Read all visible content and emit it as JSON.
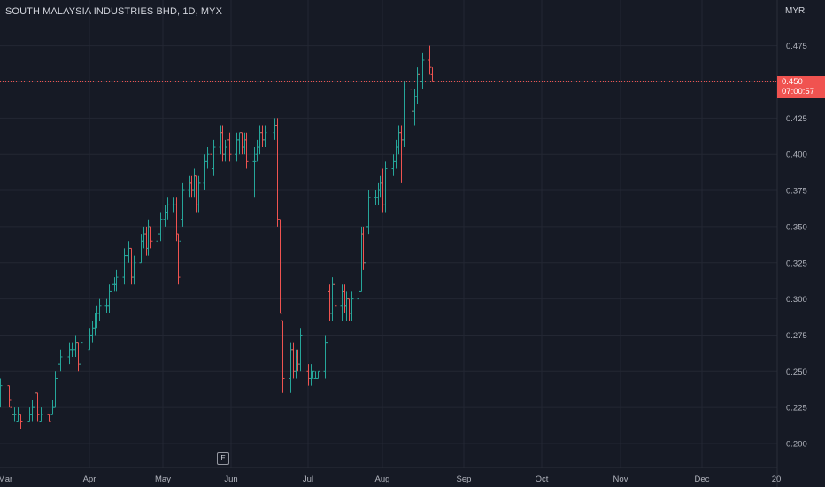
{
  "header": {
    "title": "SOUTH MALAYSIA INDUSTRIES BHD, 1D, MYX",
    "currency": "MYR"
  },
  "price_tag": {
    "price": "0.450",
    "countdown": "07:00:57"
  },
  "earnings_marker": "E",
  "colors": {
    "up": "#26a69a",
    "down": "#ef5350",
    "background": "#161a25",
    "grid": "#232733",
    "price_tag": "#f05350"
  },
  "chart_data": {
    "type": "ohlc",
    "title": "SOUTH MALAYSIA INDUSTRIES BHD, 1D, MYX",
    "ylabel": "MYR",
    "ylim": [
      0.1875,
      0.49
    ],
    "y_ticks": [
      "0.200",
      "0.225",
      "0.250",
      "0.275",
      "0.300",
      "0.325",
      "0.350",
      "0.375",
      "0.400",
      "0.425",
      "0.450",
      "0.475"
    ],
    "x_ticks": [
      "Mar",
      "Apr",
      "May",
      "Jun",
      "Jul",
      "Aug",
      "Sep",
      "Oct",
      "Nov",
      "Dec",
      "20"
    ],
    "last_price": 0.45,
    "grid": true,
    "bars": [
      {
        "date": "Mar 01",
        "o": 0.235,
        "h": 0.245,
        "l": 0.225,
        "c": 0.24
      },
      {
        "date": "Mar 04",
        "o": 0.24,
        "h": 0.24,
        "l": 0.225,
        "c": 0.23
      },
      {
        "date": "Mar 05",
        "o": 0.225,
        "h": 0.225,
        "l": 0.215,
        "c": 0.22
      },
      {
        "date": "Mar 06",
        "o": 0.22,
        "h": 0.225,
        "l": 0.215,
        "c": 0.22
      },
      {
        "date": "Mar 07",
        "o": 0.215,
        "h": 0.225,
        "l": 0.215,
        "c": 0.22
      },
      {
        "date": "Mar 08",
        "o": 0.22,
        "h": 0.22,
        "l": 0.21,
        "c": 0.215
      },
      {
        "date": "Mar 11",
        "o": 0.215,
        "h": 0.225,
        "l": 0.215,
        "c": 0.22
      },
      {
        "date": "Mar 12",
        "o": 0.22,
        "h": 0.23,
        "l": 0.215,
        "c": 0.225
      },
      {
        "date": "Mar 13",
        "o": 0.225,
        "h": 0.24,
        "l": 0.22,
        "c": 0.235
      },
      {
        "date": "Mar 14",
        "o": 0.235,
        "h": 0.235,
        "l": 0.215,
        "c": 0.22
      },
      {
        "date": "Mar 15",
        "o": 0.215,
        "h": 0.225,
        "l": 0.215,
        "c": 0.22
      },
      {
        "date": "Mar 18",
        "o": 0.22,
        "h": 0.22,
        "l": 0.215,
        "c": 0.215
      },
      {
        "date": "Mar 19",
        "o": 0.22,
        "h": 0.23,
        "l": 0.22,
        "c": 0.225
      },
      {
        "date": "Mar 20",
        "o": 0.225,
        "h": 0.25,
        "l": 0.225,
        "c": 0.245
      },
      {
        "date": "Mar 21",
        "o": 0.245,
        "h": 0.26,
        "l": 0.24,
        "c": 0.255
      },
      {
        "date": "Mar 22",
        "o": 0.255,
        "h": 0.265,
        "l": 0.25,
        "c": 0.26
      },
      {
        "date": "Mar 25",
        "o": 0.26,
        "h": 0.27,
        "l": 0.255,
        "c": 0.265
      },
      {
        "date": "Mar 26",
        "o": 0.265,
        "h": 0.27,
        "l": 0.26,
        "c": 0.265
      },
      {
        "date": "Mar 27",
        "o": 0.265,
        "h": 0.275,
        "l": 0.26,
        "c": 0.27
      },
      {
        "date": "Mar 28",
        "o": 0.27,
        "h": 0.27,
        "l": 0.25,
        "c": 0.255
      },
      {
        "date": "Mar 29",
        "o": 0.255,
        "h": 0.275,
        "l": 0.255,
        "c": 0.27
      },
      {
        "date": "Apr 01",
        "o": 0.265,
        "h": 0.28,
        "l": 0.265,
        "c": 0.275
      },
      {
        "date": "Apr 02",
        "o": 0.275,
        "h": 0.285,
        "l": 0.27,
        "c": 0.28
      },
      {
        "date": "Apr 03",
        "o": 0.28,
        "h": 0.29,
        "l": 0.275,
        "c": 0.285
      },
      {
        "date": "Apr 04",
        "o": 0.285,
        "h": 0.295,
        "l": 0.28,
        "c": 0.29
      },
      {
        "date": "Apr 05",
        "o": 0.29,
        "h": 0.3,
        "l": 0.285,
        "c": 0.295
      },
      {
        "date": "Apr 08",
        "o": 0.295,
        "h": 0.3,
        "l": 0.29,
        "c": 0.295
      },
      {
        "date": "Apr 09",
        "o": 0.295,
        "h": 0.31,
        "l": 0.29,
        "c": 0.305
      },
      {
        "date": "Apr 10",
        "o": 0.305,
        "h": 0.315,
        "l": 0.3,
        "c": 0.31
      },
      {
        "date": "Apr 11",
        "o": 0.31,
        "h": 0.315,
        "l": 0.305,
        "c": 0.31
      },
      {
        "date": "Apr 12",
        "o": 0.31,
        "h": 0.32,
        "l": 0.305,
        "c": 0.315
      },
      {
        "date": "Apr 15",
        "o": 0.315,
        "h": 0.335,
        "l": 0.31,
        "c": 0.33
      },
      {
        "date": "Apr 16",
        "o": 0.33,
        "h": 0.335,
        "l": 0.325,
        "c": 0.33
      },
      {
        "date": "Apr 17",
        "o": 0.33,
        "h": 0.34,
        "l": 0.325,
        "c": 0.335
      },
      {
        "date": "Apr 18",
        "o": 0.335,
        "h": 0.335,
        "l": 0.31,
        "c": 0.315
      },
      {
        "date": "Apr 19",
        "o": 0.315,
        "h": 0.33,
        "l": 0.31,
        "c": 0.325
      },
      {
        "date": "Apr 22",
        "o": 0.325,
        "h": 0.345,
        "l": 0.325,
        "c": 0.34
      },
      {
        "date": "Apr 23",
        "o": 0.34,
        "h": 0.35,
        "l": 0.335,
        "c": 0.345
      },
      {
        "date": "Apr 24",
        "o": 0.345,
        "h": 0.35,
        "l": 0.33,
        "c": 0.335
      },
      {
        "date": "Apr 25",
        "o": 0.335,
        "h": 0.355,
        "l": 0.33,
        "c": 0.35
      },
      {
        "date": "Apr 26",
        "o": 0.35,
        "h": 0.35,
        "l": 0.335,
        "c": 0.34
      },
      {
        "date": "Apr 29",
        "o": 0.34,
        "h": 0.35,
        "l": 0.34,
        "c": 0.345
      },
      {
        "date": "Apr 30",
        "o": 0.345,
        "h": 0.36,
        "l": 0.34,
        "c": 0.355
      },
      {
        "date": "May 02",
        "o": 0.355,
        "h": 0.365,
        "l": 0.35,
        "c": 0.36
      },
      {
        "date": "May 03",
        "o": 0.36,
        "h": 0.37,
        "l": 0.355,
        "c": 0.365
      },
      {
        "date": "May 06",
        "o": 0.365,
        "h": 0.37,
        "l": 0.36,
        "c": 0.365
      },
      {
        "date": "May 07",
        "o": 0.365,
        "h": 0.37,
        "l": 0.34,
        "c": 0.345
      },
      {
        "date": "May 08",
        "o": 0.345,
        "h": 0.345,
        "l": 0.31,
        "c": 0.315
      },
      {
        "date": "May 09",
        "o": 0.34,
        "h": 0.36,
        "l": 0.34,
        "c": 0.355
      },
      {
        "date": "May 10",
        "o": 0.355,
        "h": 0.38,
        "l": 0.35,
        "c": 0.375
      },
      {
        "date": "May 13",
        "o": 0.375,
        "h": 0.385,
        "l": 0.37,
        "c": 0.38
      },
      {
        "date": "May 14",
        "o": 0.38,
        "h": 0.385,
        "l": 0.37,
        "c": 0.375
      },
      {
        "date": "May 15",
        "o": 0.375,
        "h": 0.39,
        "l": 0.37,
        "c": 0.385
      },
      {
        "date": "May 16",
        "o": 0.385,
        "h": 0.385,
        "l": 0.36,
        "c": 0.365
      },
      {
        "date": "May 17",
        "o": 0.365,
        "h": 0.385,
        "l": 0.36,
        "c": 0.38
      },
      {
        "date": "May 20",
        "o": 0.38,
        "h": 0.4,
        "l": 0.375,
        "c": 0.395
      },
      {
        "date": "May 21",
        "o": 0.395,
        "h": 0.405,
        "l": 0.39,
        "c": 0.4
      },
      {
        "date": "May 23",
        "o": 0.4,
        "h": 0.405,
        "l": 0.385,
        "c": 0.39
      },
      {
        "date": "May 24",
        "o": 0.39,
        "h": 0.41,
        "l": 0.385,
        "c": 0.405
      },
      {
        "date": "May 27",
        "o": 0.405,
        "h": 0.42,
        "l": 0.4,
        "c": 0.415
      },
      {
        "date": "May 28",
        "o": 0.415,
        "h": 0.42,
        "l": 0.395,
        "c": 0.4
      },
      {
        "date": "May 29",
        "o": 0.4,
        "h": 0.41,
        "l": 0.395,
        "c": 0.405
      },
      {
        "date": "May 30",
        "o": 0.405,
        "h": 0.415,
        "l": 0.4,
        "c": 0.41
      },
      {
        "date": "May 31",
        "o": 0.41,
        "h": 0.415,
        "l": 0.395,
        "c": 0.4
      },
      {
        "date": "Jun 03",
        "o": 0.4,
        "h": 0.415,
        "l": 0.395,
        "c": 0.41
      },
      {
        "date": "Jun 04",
        "o": 0.41,
        "h": 0.415,
        "l": 0.4,
        "c": 0.415
      },
      {
        "date": "Jun 05",
        "o": 0.415,
        "h": 0.415,
        "l": 0.4,
        "c": 0.405
      },
      {
        "date": "Jun 06",
        "o": 0.405,
        "h": 0.415,
        "l": 0.4,
        "c": 0.41
      },
      {
        "date": "Jun 07",
        "o": 0.41,
        "h": 0.415,
        "l": 0.39,
        "c": 0.395
      },
      {
        "date": "Jun 10",
        "o": 0.395,
        "h": 0.405,
        "l": 0.37,
        "c": 0.395
      },
      {
        "date": "Jun 11",
        "o": 0.4,
        "h": 0.41,
        "l": 0.395,
        "c": 0.405
      },
      {
        "date": "Jun 12",
        "o": 0.405,
        "h": 0.42,
        "l": 0.4,
        "c": 0.415
      },
      {
        "date": "Jun 13",
        "o": 0.415,
        "h": 0.42,
        "l": 0.405,
        "c": 0.41
      },
      {
        "date": "Jun 14",
        "o": 0.41,
        "h": 0.42,
        "l": 0.405,
        "c": 0.415
      },
      {
        "date": "Jun 18",
        "o": 0.415,
        "h": 0.425,
        "l": 0.41,
        "c": 0.42
      },
      {
        "date": "Jun 19",
        "o": 0.42,
        "h": 0.425,
        "l": 0.35,
        "c": 0.355
      },
      {
        "date": "Jun 20",
        "o": 0.355,
        "h": 0.355,
        "l": 0.29,
        "c": 0.29
      },
      {
        "date": "Jun 21",
        "o": 0.285,
        "h": 0.285,
        "l": 0.235,
        "c": 0.245
      },
      {
        "date": "Jun 24",
        "o": 0.245,
        "h": 0.27,
        "l": 0.235,
        "c": 0.265
      },
      {
        "date": "Jun 25",
        "o": 0.265,
        "h": 0.27,
        "l": 0.245,
        "c": 0.25
      },
      {
        "date": "Jun 26",
        "o": 0.25,
        "h": 0.265,
        "l": 0.245,
        "c": 0.26
      },
      {
        "date": "Jun 27",
        "o": 0.26,
        "h": 0.265,
        "l": 0.25,
        "c": 0.255
      },
      {
        "date": "Jun 28",
        "o": 0.255,
        "h": 0.28,
        "l": 0.25,
        "c": 0.275
      },
      {
        "date": "Jul 01",
        "o": 0.25,
        "h": 0.255,
        "l": 0.24,
        "c": 0.245
      },
      {
        "date": "Jul 02",
        "o": 0.245,
        "h": 0.255,
        "l": 0.24,
        "c": 0.25
      },
      {
        "date": "Jul 03",
        "o": 0.245,
        "h": 0.25,
        "l": 0.245,
        "c": 0.25
      },
      {
        "date": "Jul 04",
        "o": 0.245,
        "h": 0.25,
        "l": 0.245,
        "c": 0.245
      },
      {
        "date": "Jul 05",
        "o": 0.245,
        "h": 0.25,
        "l": 0.245,
        "c": 0.25
      },
      {
        "date": "Jul 08",
        "o": 0.25,
        "h": 0.275,
        "l": 0.245,
        "c": 0.27
      },
      {
        "date": "Jul 09",
        "o": 0.27,
        "h": 0.31,
        "l": 0.265,
        "c": 0.305
      },
      {
        "date": "Jul 10",
        "o": 0.305,
        "h": 0.31,
        "l": 0.285,
        "c": 0.29
      },
      {
        "date": "Jul 11",
        "o": 0.29,
        "h": 0.315,
        "l": 0.285,
        "c": 0.31
      },
      {
        "date": "Jul 12",
        "o": 0.31,
        "h": 0.315,
        "l": 0.29,
        "c": 0.295
      },
      {
        "date": "Jul 15",
        "o": 0.295,
        "h": 0.31,
        "l": 0.285,
        "c": 0.305
      },
      {
        "date": "Jul 16",
        "o": 0.305,
        "h": 0.31,
        "l": 0.29,
        "c": 0.295
      },
      {
        "date": "Jul 17",
        "o": 0.295,
        "h": 0.305,
        "l": 0.285,
        "c": 0.3
      },
      {
        "date": "Jul 18",
        "o": 0.3,
        "h": 0.3,
        "l": 0.285,
        "c": 0.29
      },
      {
        "date": "Jul 19",
        "o": 0.29,
        "h": 0.305,
        "l": 0.285,
        "c": 0.3
      },
      {
        "date": "Jul 22",
        "o": 0.3,
        "h": 0.31,
        "l": 0.295,
        "c": 0.305
      },
      {
        "date": "Jul 23",
        "o": 0.305,
        "h": 0.35,
        "l": 0.305,
        "c": 0.345
      },
      {
        "date": "Jul 24",
        "o": 0.345,
        "h": 0.35,
        "l": 0.32,
        "c": 0.325
      },
      {
        "date": "Jul 25",
        "o": 0.325,
        "h": 0.355,
        "l": 0.32,
        "c": 0.35
      },
      {
        "date": "Jul 26",
        "o": 0.35,
        "h": 0.375,
        "l": 0.345,
        "c": 0.37
      },
      {
        "date": "Jul 29",
        "o": 0.37,
        "h": 0.375,
        "l": 0.365,
        "c": 0.37
      },
      {
        "date": "Jul 30",
        "o": 0.37,
        "h": 0.38,
        "l": 0.365,
        "c": 0.375
      },
      {
        "date": "Jul 31",
        "o": 0.375,
        "h": 0.385,
        "l": 0.37,
        "c": 0.38
      },
      {
        "date": "Aug 01",
        "o": 0.38,
        "h": 0.39,
        "l": 0.36,
        "c": 0.365
      },
      {
        "date": "Aug 02",
        "o": 0.365,
        "h": 0.395,
        "l": 0.36,
        "c": 0.39
      },
      {
        "date": "Aug 05",
        "o": 0.39,
        "h": 0.4,
        "l": 0.385,
        "c": 0.395
      },
      {
        "date": "Aug 06",
        "o": 0.395,
        "h": 0.41,
        "l": 0.39,
        "c": 0.405
      },
      {
        "date": "Aug 07",
        "o": 0.405,
        "h": 0.42,
        "l": 0.4,
        "c": 0.415
      },
      {
        "date": "Aug 08",
        "o": 0.415,
        "h": 0.42,
        "l": 0.38,
        "c": 0.41
      },
      {
        "date": "Aug 09",
        "o": 0.41,
        "h": 0.45,
        "l": 0.405,
        "c": 0.445
      },
      {
        "date": "Aug 12",
        "o": 0.445,
        "h": 0.45,
        "l": 0.425,
        "c": 0.43
      },
      {
        "date": "Aug 13",
        "o": 0.43,
        "h": 0.445,
        "l": 0.42,
        "c": 0.44
      },
      {
        "date": "Aug 14",
        "o": 0.44,
        "h": 0.46,
        "l": 0.435,
        "c": 0.455
      },
      {
        "date": "Aug 15",
        "o": 0.455,
        "h": 0.46,
        "l": 0.445,
        "c": 0.45
      },
      {
        "date": "Aug 16",
        "o": 0.45,
        "h": 0.47,
        "l": 0.445,
        "c": 0.465
      },
      {
        "date": "Aug 19",
        "o": 0.465,
        "h": 0.475,
        "l": 0.455,
        "c": 0.46
      },
      {
        "date": "Aug 20",
        "o": 0.455,
        "h": 0.46,
        "l": 0.45,
        "c": 0.45
      }
    ]
  }
}
